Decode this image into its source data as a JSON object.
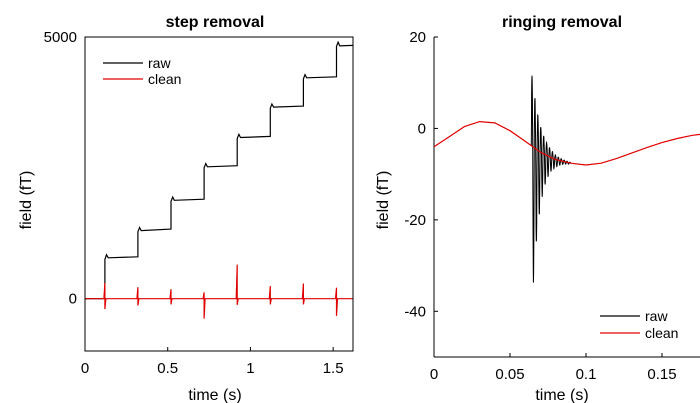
{
  "colors": {
    "raw": "#000000",
    "clean": "#e00000",
    "axis": "#000000"
  },
  "chart_data": [
    {
      "type": "line",
      "title": "step removal",
      "xlabel": "time (s)",
      "ylabel": "field (fT)",
      "xlim": [
        0,
        1.62
      ],
      "ylim": [
        -1000,
        5000
      ],
      "xticks": [
        0,
        0.5,
        1,
        1.5
      ],
      "xtick_labels": [
        "0",
        "0.5",
        "1",
        "1.5"
      ],
      "yticks": [
        0,
        5000
      ],
      "ytick_labels": [
        "0",
        "5000"
      ],
      "grid": false,
      "legend_position": "top-left",
      "step_times": [
        0.12,
        0.32,
        0.52,
        0.72,
        0.92,
        1.12,
        1.32,
        1.52
      ],
      "series": [
        {
          "name": "raw",
          "color": "#000000",
          "points": [
            [
              0.0,
              0
            ],
            [
              0.12,
              0
            ],
            [
              0.12,
              750
            ],
            [
              0.13,
              840
            ],
            [
              0.14,
              780
            ],
            [
              0.32,
              800
            ],
            [
              0.32,
              1280
            ],
            [
              0.33,
              1360
            ],
            [
              0.34,
              1300
            ],
            [
              0.52,
              1330
            ],
            [
              0.52,
              1860
            ],
            [
              0.53,
              1940
            ],
            [
              0.54,
              1880
            ],
            [
              0.72,
              1900
            ],
            [
              0.72,
              2500
            ],
            [
              0.73,
              2580
            ],
            [
              0.74,
              2520
            ],
            [
              0.92,
              2540
            ],
            [
              0.92,
              3060
            ],
            [
              0.93,
              3140
            ],
            [
              0.94,
              3080
            ],
            [
              1.12,
              3100
            ],
            [
              1.12,
              3640
            ],
            [
              1.13,
              3720
            ],
            [
              1.14,
              3660
            ],
            [
              1.32,
              3680
            ],
            [
              1.32,
              4200
            ],
            [
              1.33,
              4280
            ],
            [
              1.34,
              4220
            ],
            [
              1.52,
              4240
            ],
            [
              1.52,
              4820
            ],
            [
              1.53,
              4900
            ],
            [
              1.54,
              4830
            ],
            [
              1.62,
              4840
            ]
          ]
        },
        {
          "name": "clean",
          "color": "#e00000",
          "baseline": 0,
          "spikes": [
            {
              "t": 0.12,
              "up": 300,
              "down": -200
            },
            {
              "t": 0.32,
              "up": 220,
              "down": -130
            },
            {
              "t": 0.52,
              "up": 180,
              "down": -110
            },
            {
              "t": 0.72,
              "up": 120,
              "down": -380
            },
            {
              "t": 0.92,
              "up": 650,
              "down": -120
            },
            {
              "t": 1.12,
              "up": 240,
              "down": -110
            },
            {
              "t": 1.32,
              "up": 290,
              "down": -110
            },
            {
              "t": 1.52,
              "up": 210,
              "down": -330
            }
          ]
        }
      ]
    },
    {
      "type": "line",
      "title": "ringing removal",
      "xlabel": "time (s)",
      "ylabel": "field (fT)",
      "xlim": [
        0,
        0.175
      ],
      "ylim": [
        -50,
        20
      ],
      "xticks": [
        0,
        0.05,
        0.1,
        0.15
      ],
      "xtick_labels": [
        "0",
        "0.05",
        "0.1",
        "0.15"
      ],
      "yticks": [
        20,
        0,
        -20,
        -40
      ],
      "ytick_labels": [
        "20",
        "0",
        "-20",
        "-40"
      ],
      "grid": false,
      "legend_position": "bottom-right",
      "series": [
        {
          "name": "raw",
          "color": "#000000",
          "ringing": {
            "start": 0.064,
            "end": 0.09,
            "peak_high": 13,
            "peak_low": -43
          }
        },
        {
          "name": "clean",
          "color": "#e00000",
          "points": [
            [
              0.0,
              -4
            ],
            [
              0.01,
              -1.8
            ],
            [
              0.02,
              0.4
            ],
            [
              0.03,
              1.5
            ],
            [
              0.04,
              1.2
            ],
            [
              0.05,
              -0.5
            ],
            [
              0.06,
              -2.8
            ],
            [
              0.07,
              -5.2
            ],
            [
              0.08,
              -6.8
            ],
            [
              0.09,
              -7.6
            ],
            [
              0.1,
              -8
            ],
            [
              0.11,
              -7.6
            ],
            [
              0.12,
              -6.6
            ],
            [
              0.13,
              -5.4
            ],
            [
              0.14,
              -4.2
            ],
            [
              0.15,
              -3.1
            ],
            [
              0.16,
              -2.2
            ],
            [
              0.17,
              -1.5
            ],
            [
              0.175,
              -1.3
            ]
          ]
        }
      ]
    }
  ]
}
